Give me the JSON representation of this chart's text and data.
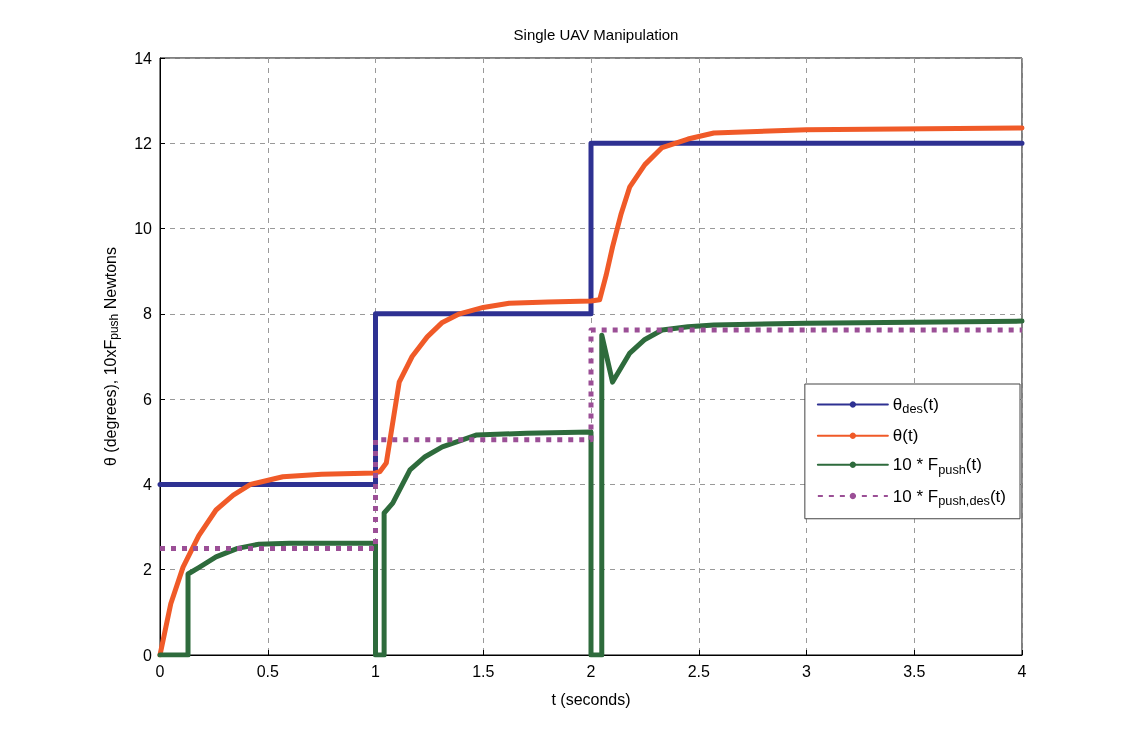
{
  "chart_data": {
    "type": "line",
    "title": "Single UAV Manipulation",
    "xlabel": "t (seconds)",
    "ylabel": "θ (degrees), 10xF$_{push}$ Newtons",
    "xlim": [
      0,
      4
    ],
    "xticks": [
      0,
      0.5,
      1,
      1.5,
      2,
      2.5,
      3,
      3.5,
      4
    ],
    "ylim": [
      0,
      14
    ],
    "yticks": [
      0,
      2,
      4,
      6,
      8,
      10,
      12,
      14
    ],
    "grid": true,
    "legend": "right",
    "marker": "none",
    "line_style": "solid",
    "series": [
      {
        "name": "θ$_{des}$(t)",
        "color": "#2e3192",
        "x": [
          0,
          1,
          1,
          2,
          2,
          4
        ],
        "values": [
          4,
          4,
          8,
          8,
          12,
          12
        ]
      },
      {
        "name": "θ(t)",
        "color": "#f05a28",
        "x": [
          0,
          0.05,
          0.107,
          0.18,
          0.26,
          0.34,
          0.42,
          0.57,
          0.75,
          1,
          1.02,
          1.05,
          1.11,
          1.17,
          1.24,
          1.31,
          1.39,
          1.5,
          1.62,
          1.8,
          2,
          2.04,
          2.07,
          2.1,
          2.14,
          2.18,
          2.25,
          2.33,
          2.45,
          2.57,
          3,
          4
        ],
        "values": [
          0,
          1.2,
          2.06,
          2.8,
          3.4,
          3.75,
          4.0,
          4.18,
          4.24,
          4.27,
          4.3,
          4.5,
          6.4,
          7.0,
          7.46,
          7.8,
          8.0,
          8.15,
          8.25,
          8.28,
          8.3,
          8.33,
          8.9,
          9.57,
          10.35,
          10.98,
          11.5,
          11.9,
          12.1,
          12.24,
          12.32,
          12.36
        ]
      },
      {
        "name": "10 * F$_{push}$(t)",
        "color": "#2e6b3c",
        "x": [
          0,
          0.13,
          0.13,
          0.18,
          0.26,
          0.36,
          0.46,
          0.6,
          1,
          1,
          1.04,
          1.04,
          1.08,
          1.16,
          1.23,
          1.31,
          1.47,
          1.7,
          2,
          2,
          2.05,
          2.05,
          2.1,
          2.18,
          2.25,
          2.33,
          2.45,
          2.57,
          3,
          4
        ],
        "values": [
          0,
          0,
          1.9,
          2.05,
          2.3,
          2.5,
          2.6,
          2.62,
          2.62,
          0,
          0,
          3.33,
          3.56,
          4.34,
          4.65,
          4.88,
          5.16,
          5.2,
          5.23,
          0,
          0,
          7.5,
          6.4,
          7.08,
          7.4,
          7.62,
          7.7,
          7.74,
          7.78,
          7.83
        ]
      },
      {
        "name": "10 * F$_{push,des}$(t)",
        "color": "#9b4f96",
        "line_style": "dotted",
        "x": [
          0,
          1,
          1,
          2,
          2,
          4
        ],
        "values": [
          2.5,
          2.5,
          5.05,
          5.05,
          7.62,
          7.62
        ]
      }
    ]
  }
}
